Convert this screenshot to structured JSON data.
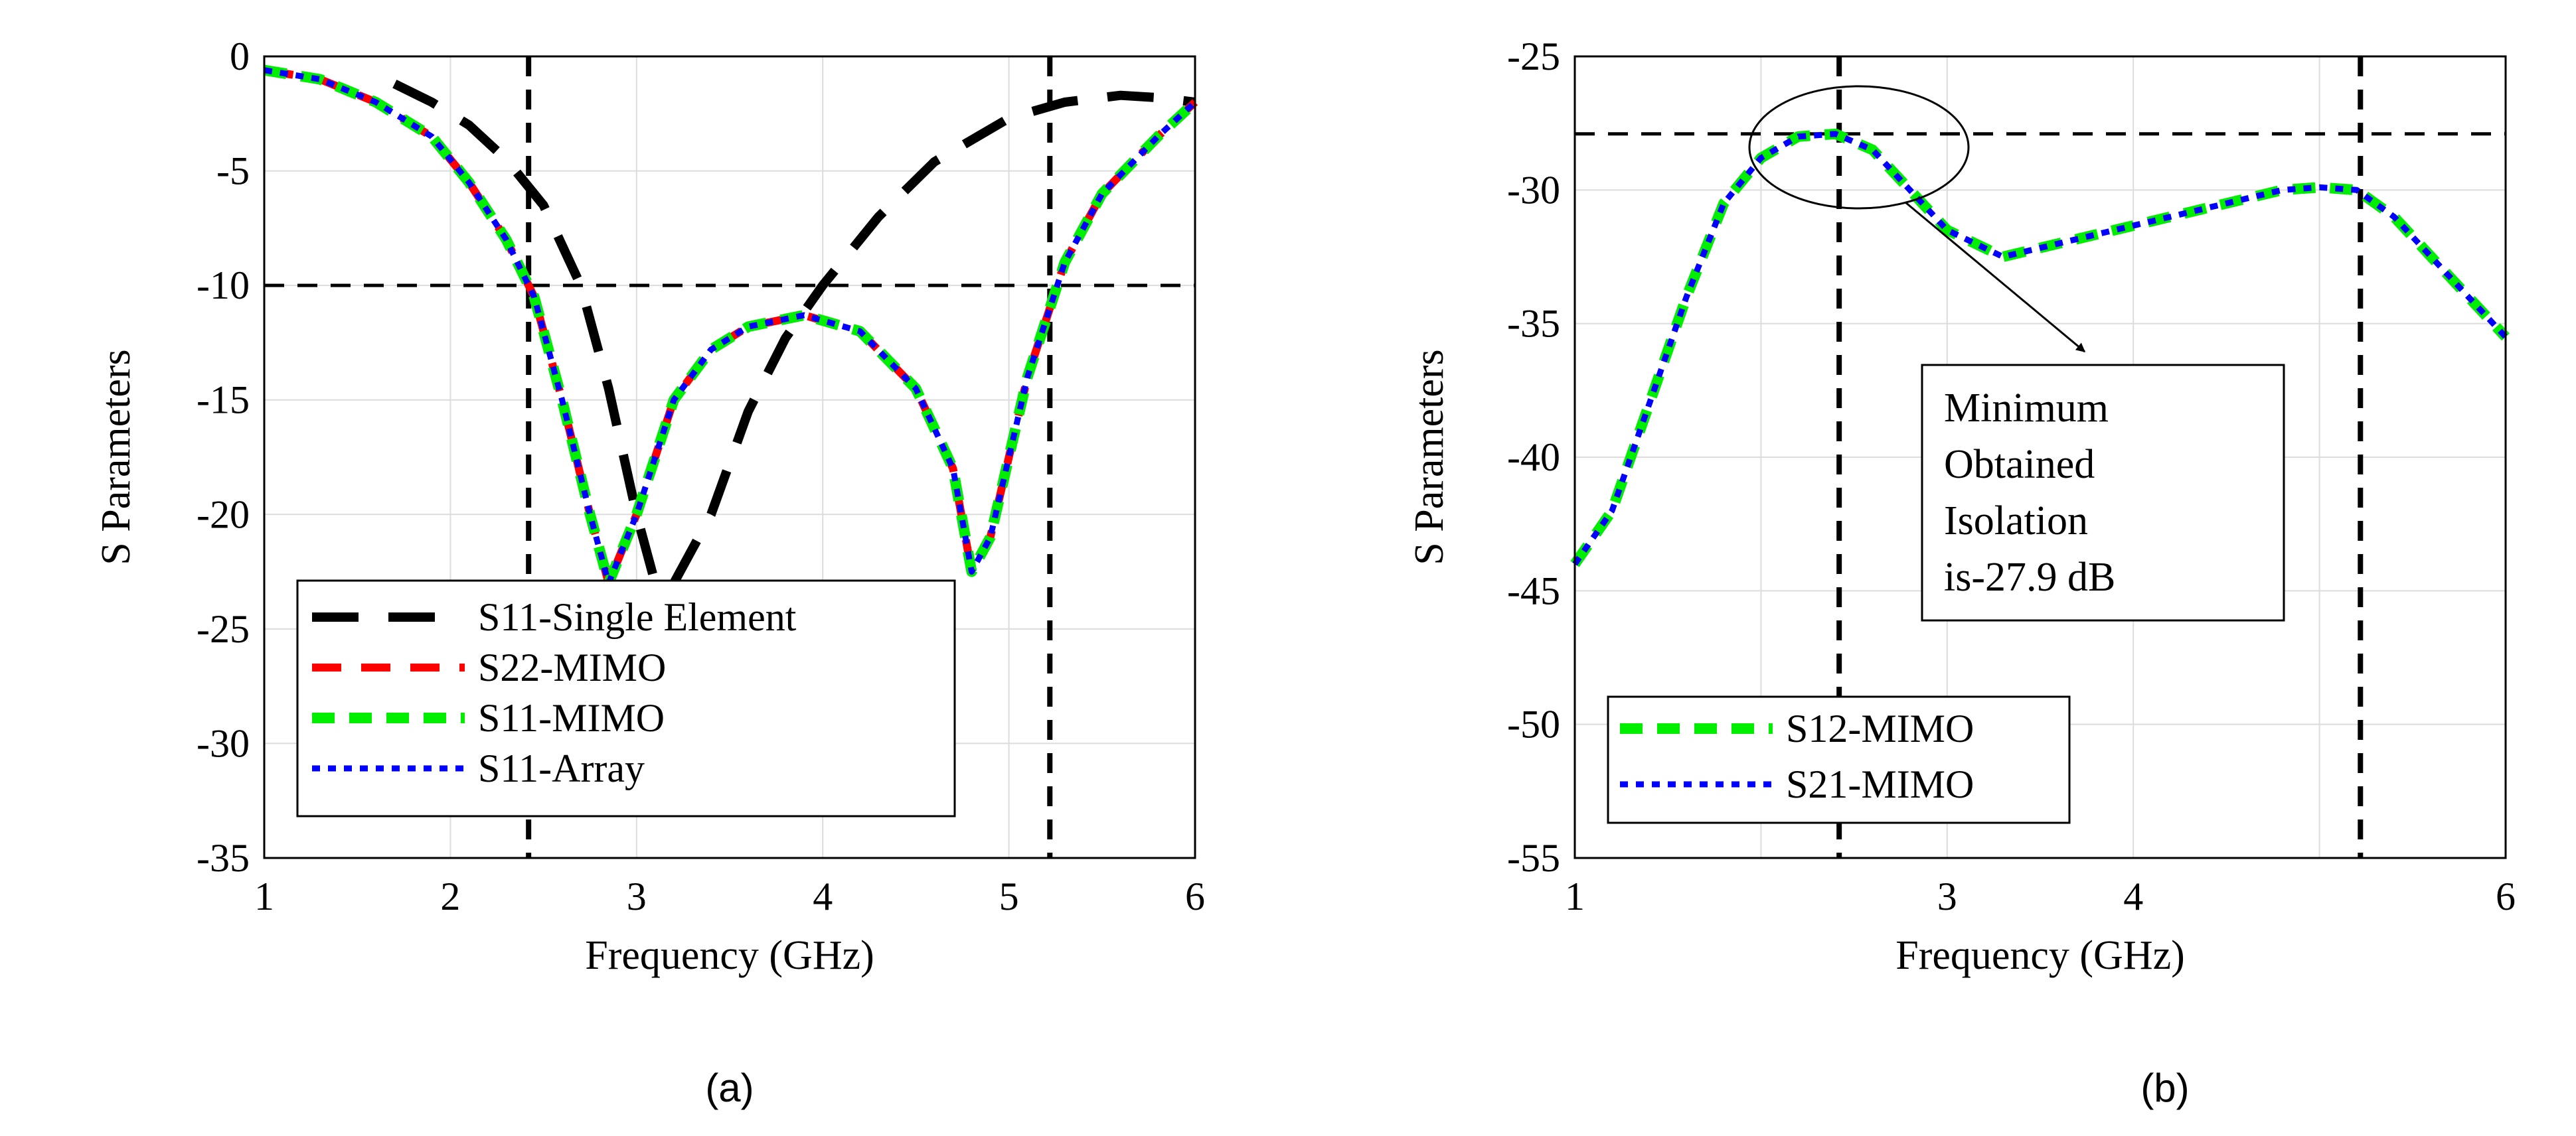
{
  "figure": {
    "subcaption_a": "(a)",
    "subcaption_b": "(b)"
  },
  "chart_data": [
    {
      "id": "a",
      "type": "line",
      "title": "",
      "xlabel": "Frequency (GHz)",
      "ylabel": "S Parameters",
      "xlim": [
        1,
        6
      ],
      "ylim": [
        -35,
        0
      ],
      "xticks": [
        1,
        2,
        3,
        4,
        5,
        6
      ],
      "yticks": [
        0,
        -5,
        -10,
        -15,
        -20,
        -25,
        -30,
        -35
      ],
      "grid": true,
      "legend_position": "bottom-center",
      "reference_lines": {
        "horizontal": [
          -10
        ],
        "vertical": [
          2.42,
          5.22
        ]
      },
      "series": [
        {
          "name": "S11-Single Element",
          "color": "#000000",
          "style": "long-dash",
          "x": [
            1.7,
            1.9,
            2.1,
            2.3,
            2.5,
            2.7,
            2.85,
            3.0,
            3.1,
            3.2,
            3.4,
            3.6,
            3.8,
            4.0,
            4.3,
            4.6,
            5.0,
            5.3,
            5.6,
            5.8,
            6.0
          ],
          "values": [
            -1.2,
            -2.0,
            -3.0,
            -4.5,
            -6.5,
            -10.0,
            -14.5,
            -20.0,
            -23.0,
            -23.0,
            -20.0,
            -15.5,
            -12.3,
            -10.0,
            -7.0,
            -4.6,
            -2.7,
            -2.0,
            -1.7,
            -1.8,
            -2.0
          ]
        },
        {
          "name": "S22-MIMO",
          "color": "#ff0000",
          "style": "dash",
          "x": [
            1.0,
            1.3,
            1.6,
            1.9,
            2.1,
            2.3,
            2.45,
            2.6,
            2.75,
            2.85,
            3.0,
            3.2,
            3.4,
            3.6,
            3.9,
            4.2,
            4.5,
            4.7,
            4.8,
            4.9,
            5.1,
            5.3,
            5.5,
            5.8,
            6.0
          ],
          "values": [
            -0.6,
            -1.0,
            -2.0,
            -3.5,
            -5.5,
            -8.0,
            -10.5,
            -15.0,
            -20.0,
            -23.0,
            -20.0,
            -15.0,
            -12.8,
            -11.8,
            -11.3,
            -12.0,
            -14.5,
            -18.0,
            -22.5,
            -21.0,
            -14.0,
            -9.0,
            -6.0,
            -3.5,
            -2.0
          ]
        },
        {
          "name": "S11-MIMO",
          "color": "#00ee00",
          "style": "thick-dash",
          "x": [
            1.0,
            1.3,
            1.6,
            1.9,
            2.1,
            2.3,
            2.45,
            2.6,
            2.75,
            2.85,
            3.0,
            3.2,
            3.4,
            3.6,
            3.9,
            4.2,
            4.5,
            4.7,
            4.8,
            4.9,
            5.1,
            5.3,
            5.5,
            5.8,
            6.0
          ],
          "values": [
            -0.6,
            -1.0,
            -2.0,
            -3.5,
            -5.5,
            -8.0,
            -10.5,
            -15.0,
            -20.0,
            -23.0,
            -20.0,
            -15.0,
            -12.8,
            -11.8,
            -11.3,
            -12.0,
            -14.5,
            -18.0,
            -22.5,
            -21.0,
            -14.0,
            -9.0,
            -6.0,
            -3.5,
            -2.0
          ]
        },
        {
          "name": "S11-Array",
          "color": "#0000ff",
          "style": "dot",
          "x": [
            1.0,
            1.3,
            1.6,
            1.9,
            2.1,
            2.3,
            2.45,
            2.6,
            2.75,
            2.85,
            3.0,
            3.2,
            3.4,
            3.6,
            3.9,
            4.2,
            4.5,
            4.7,
            4.8,
            4.9,
            5.1,
            5.3,
            5.5,
            5.8,
            6.0
          ],
          "values": [
            -0.6,
            -1.0,
            -2.0,
            -3.5,
            -5.5,
            -8.0,
            -10.5,
            -15.0,
            -20.0,
            -23.0,
            -20.0,
            -15.0,
            -12.8,
            -11.8,
            -11.3,
            -12.0,
            -14.5,
            -18.0,
            -22.5,
            -21.0,
            -14.0,
            -9.0,
            -6.0,
            -3.5,
            -2.0
          ]
        }
      ]
    },
    {
      "id": "b",
      "type": "line",
      "title": "",
      "xlabel": "Frequency (GHz)",
      "ylabel": "S Parameters",
      "xlim": [
        1,
        6
      ],
      "ylim": [
        -55,
        -25
      ],
      "xticks": [
        1,
        3,
        4,
        6
      ],
      "xgrid": [
        1,
        2,
        3,
        4,
        5,
        6
      ],
      "yticks": [
        -25,
        -30,
        -35,
        -40,
        -45,
        -50,
        -55
      ],
      "grid": true,
      "legend_position": "bottom-left",
      "reference_lines": {
        "horizontal": [
          -27.9
        ],
        "vertical": [
          2.42,
          5.22
        ]
      },
      "annotation": {
        "lines": [
          "Minimum",
          "Obtained",
          "Isolation",
          "is-27.9 dB"
        ],
        "target_x": 2.3,
        "target_y": -27.9
      },
      "series": [
        {
          "name": "S12-MIMO",
          "color": "#00ee00",
          "style": "thick-dash",
          "x": [
            1.0,
            1.2,
            1.4,
            1.6,
            1.8,
            2.0,
            2.2,
            2.4,
            2.6,
            2.8,
            3.0,
            3.3,
            3.6,
            3.9,
            4.2,
            4.5,
            4.8,
            5.0,
            5.2,
            5.4,
            5.6,
            5.8,
            6.0
          ],
          "values": [
            -44.0,
            -42.0,
            -38.0,
            -34.0,
            -30.5,
            -28.8,
            -28.0,
            -27.9,
            -28.5,
            -30.0,
            -31.5,
            -32.5,
            -32.0,
            -31.5,
            -31.0,
            -30.5,
            -30.0,
            -29.9,
            -30.0,
            -31.0,
            -32.5,
            -34.0,
            -35.5
          ]
        },
        {
          "name": "S21-MIMO",
          "color": "#0000ff",
          "style": "dot",
          "x": [
            1.0,
            1.2,
            1.4,
            1.6,
            1.8,
            2.0,
            2.2,
            2.4,
            2.6,
            2.8,
            3.0,
            3.3,
            3.6,
            3.9,
            4.2,
            4.5,
            4.8,
            5.0,
            5.2,
            5.4,
            5.6,
            5.8,
            6.0
          ],
          "values": [
            -44.0,
            -42.0,
            -38.0,
            -34.0,
            -30.5,
            -28.8,
            -28.0,
            -27.9,
            -28.5,
            -30.0,
            -31.5,
            -32.5,
            -32.0,
            -31.5,
            -31.0,
            -30.5,
            -30.0,
            -29.9,
            -30.0,
            -31.0,
            -32.5,
            -34.0,
            -35.5
          ]
        }
      ]
    }
  ]
}
